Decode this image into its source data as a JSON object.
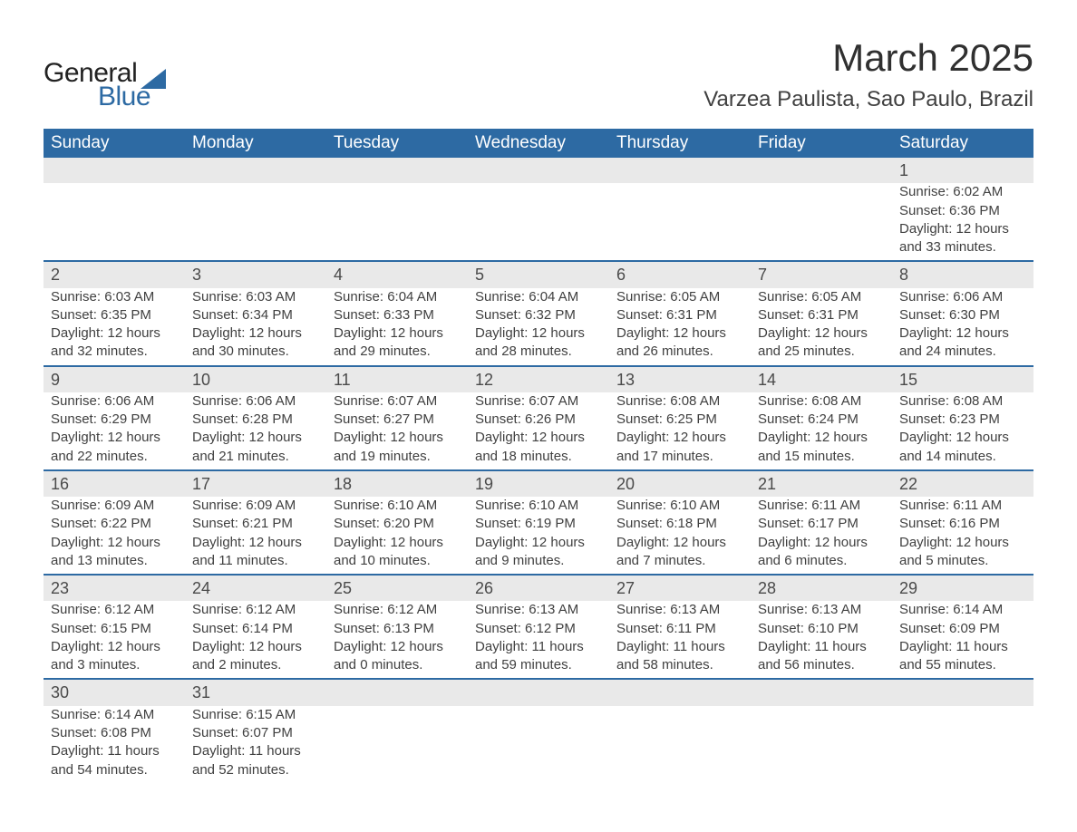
{
  "logo": {
    "text1": "General",
    "text2": "Blue",
    "sail_color": "#2d6aa3",
    "text_color": "#222"
  },
  "header": {
    "month_title": "March 2025",
    "location": "Varzea Paulista, Sao Paulo, Brazil"
  },
  "calendar": {
    "type": "table",
    "header_bg": "#2d6aa3",
    "header_fg": "#ffffff",
    "daynum_bg": "#e9e9e9",
    "row_divider_color": "#2d6aa3",
    "body_text_color": "#404040",
    "font_family": "Arial",
    "header_fontsize": 19,
    "body_fontsize": 15,
    "daynum_fontsize": 18,
    "columns": [
      "Sunday",
      "Monday",
      "Tuesday",
      "Wednesday",
      "Thursday",
      "Friday",
      "Saturday"
    ],
    "weeks": [
      [
        null,
        null,
        null,
        null,
        null,
        null,
        {
          "day": "1",
          "sunrise": "Sunrise: 6:02 AM",
          "sunset": "Sunset: 6:36 PM",
          "dl1": "Daylight: 12 hours",
          "dl2": "and 33 minutes."
        }
      ],
      [
        {
          "day": "2",
          "sunrise": "Sunrise: 6:03 AM",
          "sunset": "Sunset: 6:35 PM",
          "dl1": "Daylight: 12 hours",
          "dl2": "and 32 minutes."
        },
        {
          "day": "3",
          "sunrise": "Sunrise: 6:03 AM",
          "sunset": "Sunset: 6:34 PM",
          "dl1": "Daylight: 12 hours",
          "dl2": "and 30 minutes."
        },
        {
          "day": "4",
          "sunrise": "Sunrise: 6:04 AM",
          "sunset": "Sunset: 6:33 PM",
          "dl1": "Daylight: 12 hours",
          "dl2": "and 29 minutes."
        },
        {
          "day": "5",
          "sunrise": "Sunrise: 6:04 AM",
          "sunset": "Sunset: 6:32 PM",
          "dl1": "Daylight: 12 hours",
          "dl2": "and 28 minutes."
        },
        {
          "day": "6",
          "sunrise": "Sunrise: 6:05 AM",
          "sunset": "Sunset: 6:31 PM",
          "dl1": "Daylight: 12 hours",
          "dl2": "and 26 minutes."
        },
        {
          "day": "7",
          "sunrise": "Sunrise: 6:05 AM",
          "sunset": "Sunset: 6:31 PM",
          "dl1": "Daylight: 12 hours",
          "dl2": "and 25 minutes."
        },
        {
          "day": "8",
          "sunrise": "Sunrise: 6:06 AM",
          "sunset": "Sunset: 6:30 PM",
          "dl1": "Daylight: 12 hours",
          "dl2": "and 24 minutes."
        }
      ],
      [
        {
          "day": "9",
          "sunrise": "Sunrise: 6:06 AM",
          "sunset": "Sunset: 6:29 PM",
          "dl1": "Daylight: 12 hours",
          "dl2": "and 22 minutes."
        },
        {
          "day": "10",
          "sunrise": "Sunrise: 6:06 AM",
          "sunset": "Sunset: 6:28 PM",
          "dl1": "Daylight: 12 hours",
          "dl2": "and 21 minutes."
        },
        {
          "day": "11",
          "sunrise": "Sunrise: 6:07 AM",
          "sunset": "Sunset: 6:27 PM",
          "dl1": "Daylight: 12 hours",
          "dl2": "and 19 minutes."
        },
        {
          "day": "12",
          "sunrise": "Sunrise: 6:07 AM",
          "sunset": "Sunset: 6:26 PM",
          "dl1": "Daylight: 12 hours",
          "dl2": "and 18 minutes."
        },
        {
          "day": "13",
          "sunrise": "Sunrise: 6:08 AM",
          "sunset": "Sunset: 6:25 PM",
          "dl1": "Daylight: 12 hours",
          "dl2": "and 17 minutes."
        },
        {
          "day": "14",
          "sunrise": "Sunrise: 6:08 AM",
          "sunset": "Sunset: 6:24 PM",
          "dl1": "Daylight: 12 hours",
          "dl2": "and 15 minutes."
        },
        {
          "day": "15",
          "sunrise": "Sunrise: 6:08 AM",
          "sunset": "Sunset: 6:23 PM",
          "dl1": "Daylight: 12 hours",
          "dl2": "and 14 minutes."
        }
      ],
      [
        {
          "day": "16",
          "sunrise": "Sunrise: 6:09 AM",
          "sunset": "Sunset: 6:22 PM",
          "dl1": "Daylight: 12 hours",
          "dl2": "and 13 minutes."
        },
        {
          "day": "17",
          "sunrise": "Sunrise: 6:09 AM",
          "sunset": "Sunset: 6:21 PM",
          "dl1": "Daylight: 12 hours",
          "dl2": "and 11 minutes."
        },
        {
          "day": "18",
          "sunrise": "Sunrise: 6:10 AM",
          "sunset": "Sunset: 6:20 PM",
          "dl1": "Daylight: 12 hours",
          "dl2": "and 10 minutes."
        },
        {
          "day": "19",
          "sunrise": "Sunrise: 6:10 AM",
          "sunset": "Sunset: 6:19 PM",
          "dl1": "Daylight: 12 hours",
          "dl2": "and 9 minutes."
        },
        {
          "day": "20",
          "sunrise": "Sunrise: 6:10 AM",
          "sunset": "Sunset: 6:18 PM",
          "dl1": "Daylight: 12 hours",
          "dl2": "and 7 minutes."
        },
        {
          "day": "21",
          "sunrise": "Sunrise: 6:11 AM",
          "sunset": "Sunset: 6:17 PM",
          "dl1": "Daylight: 12 hours",
          "dl2": "and 6 minutes."
        },
        {
          "day": "22",
          "sunrise": "Sunrise: 6:11 AM",
          "sunset": "Sunset: 6:16 PM",
          "dl1": "Daylight: 12 hours",
          "dl2": "and 5 minutes."
        }
      ],
      [
        {
          "day": "23",
          "sunrise": "Sunrise: 6:12 AM",
          "sunset": "Sunset: 6:15 PM",
          "dl1": "Daylight: 12 hours",
          "dl2": "and 3 minutes."
        },
        {
          "day": "24",
          "sunrise": "Sunrise: 6:12 AM",
          "sunset": "Sunset: 6:14 PM",
          "dl1": "Daylight: 12 hours",
          "dl2": "and 2 minutes."
        },
        {
          "day": "25",
          "sunrise": "Sunrise: 6:12 AM",
          "sunset": "Sunset: 6:13 PM",
          "dl1": "Daylight: 12 hours",
          "dl2": "and 0 minutes."
        },
        {
          "day": "26",
          "sunrise": "Sunrise: 6:13 AM",
          "sunset": "Sunset: 6:12 PM",
          "dl1": "Daylight: 11 hours",
          "dl2": "and 59 minutes."
        },
        {
          "day": "27",
          "sunrise": "Sunrise: 6:13 AM",
          "sunset": "Sunset: 6:11 PM",
          "dl1": "Daylight: 11 hours",
          "dl2": "and 58 minutes."
        },
        {
          "day": "28",
          "sunrise": "Sunrise: 6:13 AM",
          "sunset": "Sunset: 6:10 PM",
          "dl1": "Daylight: 11 hours",
          "dl2": "and 56 minutes."
        },
        {
          "day": "29",
          "sunrise": "Sunrise: 6:14 AM",
          "sunset": "Sunset: 6:09 PM",
          "dl1": "Daylight: 11 hours",
          "dl2": "and 55 minutes."
        }
      ],
      [
        {
          "day": "30",
          "sunrise": "Sunrise: 6:14 AM",
          "sunset": "Sunset: 6:08 PM",
          "dl1": "Daylight: 11 hours",
          "dl2": "and 54 minutes."
        },
        {
          "day": "31",
          "sunrise": "Sunrise: 6:15 AM",
          "sunset": "Sunset: 6:07 PM",
          "dl1": "Daylight: 11 hours",
          "dl2": "and 52 minutes."
        },
        null,
        null,
        null,
        null,
        null
      ]
    ]
  }
}
